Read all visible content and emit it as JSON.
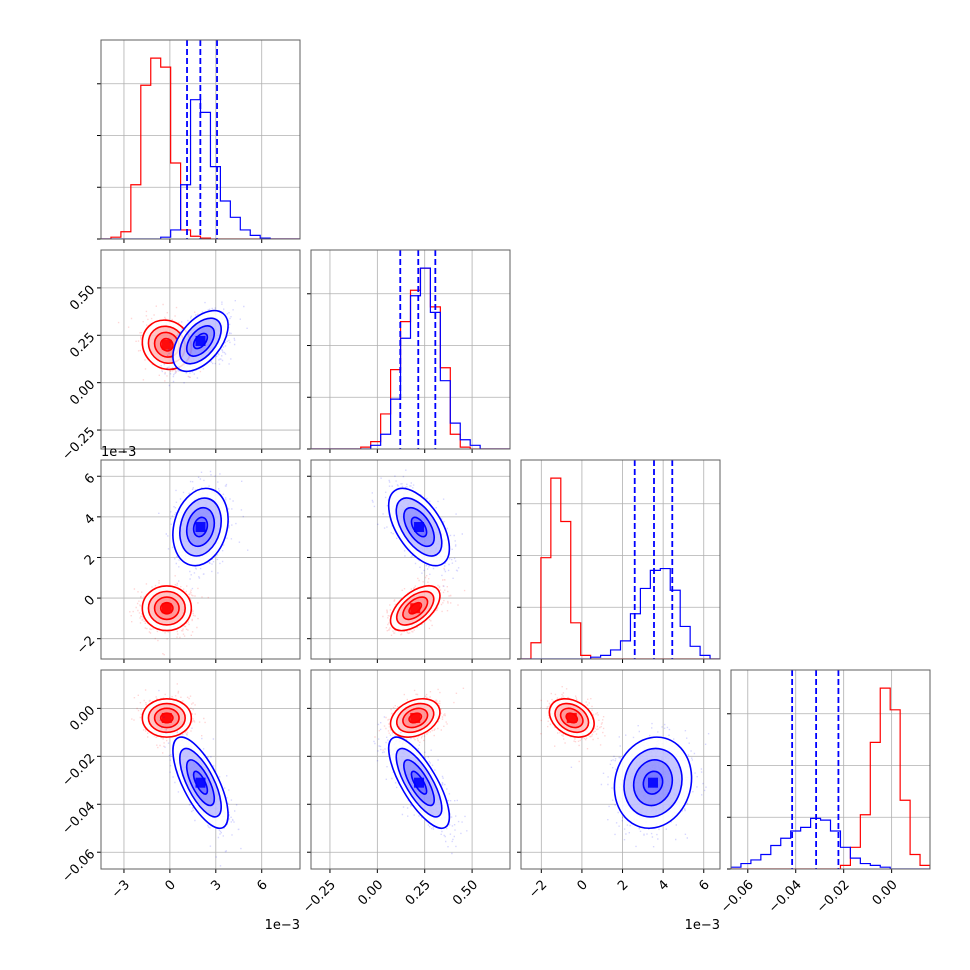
{
  "chart_data": {
    "type": "corner",
    "params": [
      {
        "range": [
          -4.5,
          8.5
        ],
        "ticks": [
          -3,
          0,
          3,
          6
        ],
        "tick_labels": [
          "−3",
          "0",
          "3",
          "6"
        ],
        "offset_label": "1e−3"
      },
      {
        "range": [
          -0.35,
          0.7
        ],
        "ticks": [
          -0.25,
          0.0,
          0.25,
          0.5
        ],
        "tick_labels": [
          "−0.25",
          "0.00",
          "0.25",
          "0.50"
        ],
        "offset_label": ""
      },
      {
        "range": [
          -3.0,
          6.8
        ],
        "ticks": [
          -2,
          0,
          2,
          4,
          6
        ],
        "tick_labels": [
          "−2",
          "0",
          "2",
          "4",
          "6"
        ],
        "offset_label": "1e−3"
      },
      {
        "range": [
          -0.067,
          0.016
        ],
        "ticks": [
          -0.06,
          -0.04,
          -0.02,
          0.0
        ],
        "tick_labels": [
          "−0.06",
          "−0.04",
          "−0.02",
          "0.00"
        ],
        "offset_label": ""
      }
    ],
    "series": [
      {
        "name": "",
        "color": "#ff0000",
        "means": [
          -0.2,
          0.2,
          -0.5,
          -0.004
        ],
        "sds": [
          0.8,
          0.065,
          0.55,
          0.004
        ],
        "correlations": {
          "1-0": -0.1,
          "2-0": 0.0,
          "2-1": 0.55,
          "3-0": 0.0,
          "3-1": 0.3,
          "3-2": -0.3
        },
        "histograms": [
          {
            "edges": [
              -4.5,
              -3.85,
              -3.2,
              -2.55,
              -1.9,
              -1.25,
              -0.6,
              0.05,
              0.7,
              1.35,
              2.0,
              2.65,
              3.3,
              3.95,
              4.6,
              5.25,
              5.9,
              6.55,
              7.2,
              7.85,
              8.5
            ],
            "counts": [
              0,
              0.01,
              0.04,
              0.3,
              0.85,
              1.0,
              0.95,
              0.42,
              0.05,
              0.015,
              0.005,
              0,
              0,
              0,
              0,
              0,
              0,
              0,
              0,
              0
            ]
          },
          {
            "edges": [
              -0.35,
              -0.2975,
              -0.245,
              -0.1925,
              -0.14,
              -0.0875,
              -0.035,
              0.0175,
              0.07,
              0.1225,
              0.175,
              0.2275,
              0.28,
              0.3325,
              0.385,
              0.4375,
              0.49,
              0.5425,
              0.595,
              0.6475,
              0.7
            ],
            "counts": [
              0,
              0,
              0,
              0,
              0,
              0.01,
              0.04,
              0.19,
              0.43,
              0.69,
              0.86,
              0.98,
              0.77,
              0.44,
              0.08,
              0.01,
              0,
              0,
              0,
              0
            ]
          },
          {
            "edges": [
              -3.0,
              -2.51,
              -2.02,
              -1.53,
              -1.04,
              -0.55,
              -0.06,
              0.43,
              0.92,
              1.41,
              1.9,
              2.39,
              2.88,
              3.37,
              3.86,
              4.35,
              4.84,
              5.33,
              5.82,
              6.31,
              6.8
            ],
            "counts": [
              0,
              0.09,
              0.56,
              1.0,
              0.76,
              0.2,
              0.02,
              0,
              0,
              0,
              0,
              0,
              0,
              0,
              0,
              0,
              0,
              0,
              0,
              0
            ]
          },
          {
            "edges": [
              -0.067,
              -0.06285,
              -0.0587,
              -0.05455,
              -0.0504,
              -0.04625,
              -0.0421,
              -0.03795,
              -0.0338,
              -0.02965,
              -0.0255,
              -0.02135,
              -0.0172,
              -0.01305,
              -0.0089,
              -0.00475,
              -0.0006,
              0.00355,
              0.0077,
              0.01185,
              0.016
            ],
            "counts": [
              0,
              0,
              0,
              0,
              0,
              0,
              0,
              0,
              0,
              0,
              0,
              0.02,
              0.12,
              0.3,
              0.7,
              1.0,
              0.88,
              0.38,
              0.08,
              0.02
            ]
          }
        ]
      },
      {
        "name": "",
        "color": "#0000ff",
        "means": [
          2.0,
          0.22,
          3.5,
          -0.031
        ],
        "sds": [
          0.9,
          0.08,
          0.95,
          0.0095
        ],
        "correlations": {
          "1-0": 0.5,
          "2-0": 0.2,
          "2-1": -0.55,
          "3-0": -0.7,
          "3-1": -0.75,
          "3-2": 0.1
        },
        "quantiles": [
          [
            1.12,
            1.99,
            3.08
          ],
          [
            0.121,
            0.216,
            0.306
          ],
          [
            2.6,
            3.55,
            4.45
          ],
          [
            -0.0415,
            -0.0315,
            -0.0222
          ]
        ],
        "histograms": [
          {
            "edges": [
              -4.5,
              -3.85,
              -3.2,
              -2.55,
              -1.9,
              -1.25,
              -0.6,
              0.05,
              0.7,
              1.35,
              2.0,
              2.65,
              3.3,
              3.95,
              4.6,
              5.25,
              5.9,
              6.55,
              7.2,
              7.85,
              8.5
            ],
            "counts": [
              0,
              0,
              0,
              0,
              0,
              0,
              0.01,
              0.05,
              0.3,
              0.77,
              0.7,
              0.4,
              0.21,
              0.12,
              0.05,
              0.02,
              0.005,
              0,
              0,
              0
            ]
          },
          {
            "edges": [
              -0.35,
              -0.2975,
              -0.245,
              -0.1925,
              -0.14,
              -0.0875,
              -0.035,
              0.0175,
              0.07,
              0.1225,
              0.175,
              0.2275,
              0.28,
              0.3325,
              0.385,
              0.4375,
              0.49,
              0.5425,
              0.595,
              0.6475,
              0.7
            ],
            "counts": [
              0,
              0,
              0,
              0,
              0,
              0,
              0.02,
              0.08,
              0.27,
              0.6,
              0.83,
              0.98,
              0.74,
              0.37,
              0.14,
              0.05,
              0.02,
              0,
              0,
              0
            ]
          },
          {
            "edges": [
              -3.0,
              -2.51,
              -2.02,
              -1.53,
              -1.04,
              -0.55,
              -0.06,
              0.43,
              0.92,
              1.41,
              1.9,
              2.39,
              2.88,
              3.37,
              3.86,
              4.35,
              4.84,
              5.33,
              5.82,
              6.31,
              6.8
            ],
            "counts": [
              0,
              0,
              0,
              0,
              0,
              0,
              0,
              0.01,
              0.02,
              0.05,
              0.1,
              0.25,
              0.39,
              0.49,
              0.5,
              0.38,
              0.18,
              0.07,
              0.02,
              0
            ]
          },
          {
            "edges": [
              -0.067,
              -0.06285,
              -0.0587,
              -0.05455,
              -0.0504,
              -0.04625,
              -0.0421,
              -0.03795,
              -0.0338,
              -0.02965,
              -0.0255,
              -0.02135,
              -0.0172,
              -0.01305,
              -0.0089,
              -0.00475,
              -0.0006,
              0.00355,
              0.0077,
              0.01185,
              0.016
            ],
            "counts": [
              0.01,
              0.03,
              0.05,
              0.08,
              0.13,
              0.17,
              0.21,
              0.23,
              0.28,
              0.27,
              0.21,
              0.12,
              0.06,
              0.03,
              0.02,
              0.01,
              0,
              0,
              0,
              0
            ]
          }
        ]
      }
    ],
    "grid": true,
    "contour_levels": [
      "0.5σ",
      "1σ",
      "1.5σ",
      "2σ"
    ]
  }
}
